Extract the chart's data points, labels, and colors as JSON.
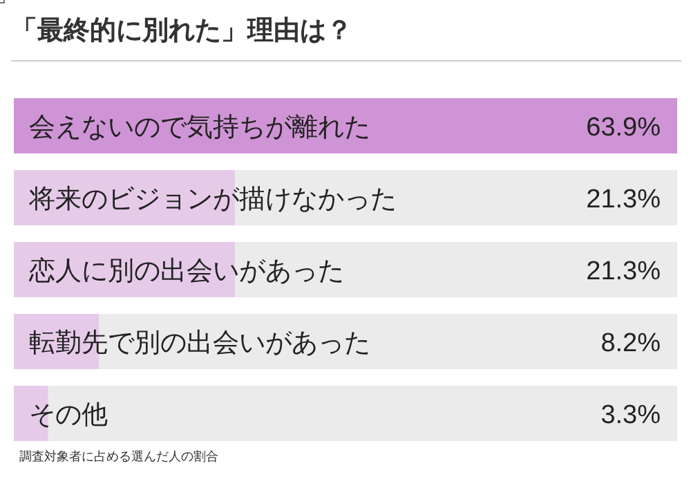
{
  "chart_data": {
    "type": "bar",
    "orientation": "horizontal",
    "title": "「最終的に別れた」理由は？",
    "categories": [
      "会えないので気持ちが離れた",
      "将来のビジョンが描けなかった",
      "恋人に別の出会いがあった",
      "転勤先で別の出会いがあった",
      "その他"
    ],
    "values": [
      63.9,
      21.3,
      21.3,
      8.2,
      3.3
    ],
    "value_labels": [
      "63.9%",
      "21.3%",
      "21.3%",
      "8.2%",
      "3.3%"
    ],
    "colors": [
      "#cf94d6",
      "#e6cbe9",
      "#e6cbe9",
      "#e6cbe9",
      "#e6cbe9"
    ],
    "annotations": [
      "調査対象者に占める選んだ人の割合"
    ]
  }
}
